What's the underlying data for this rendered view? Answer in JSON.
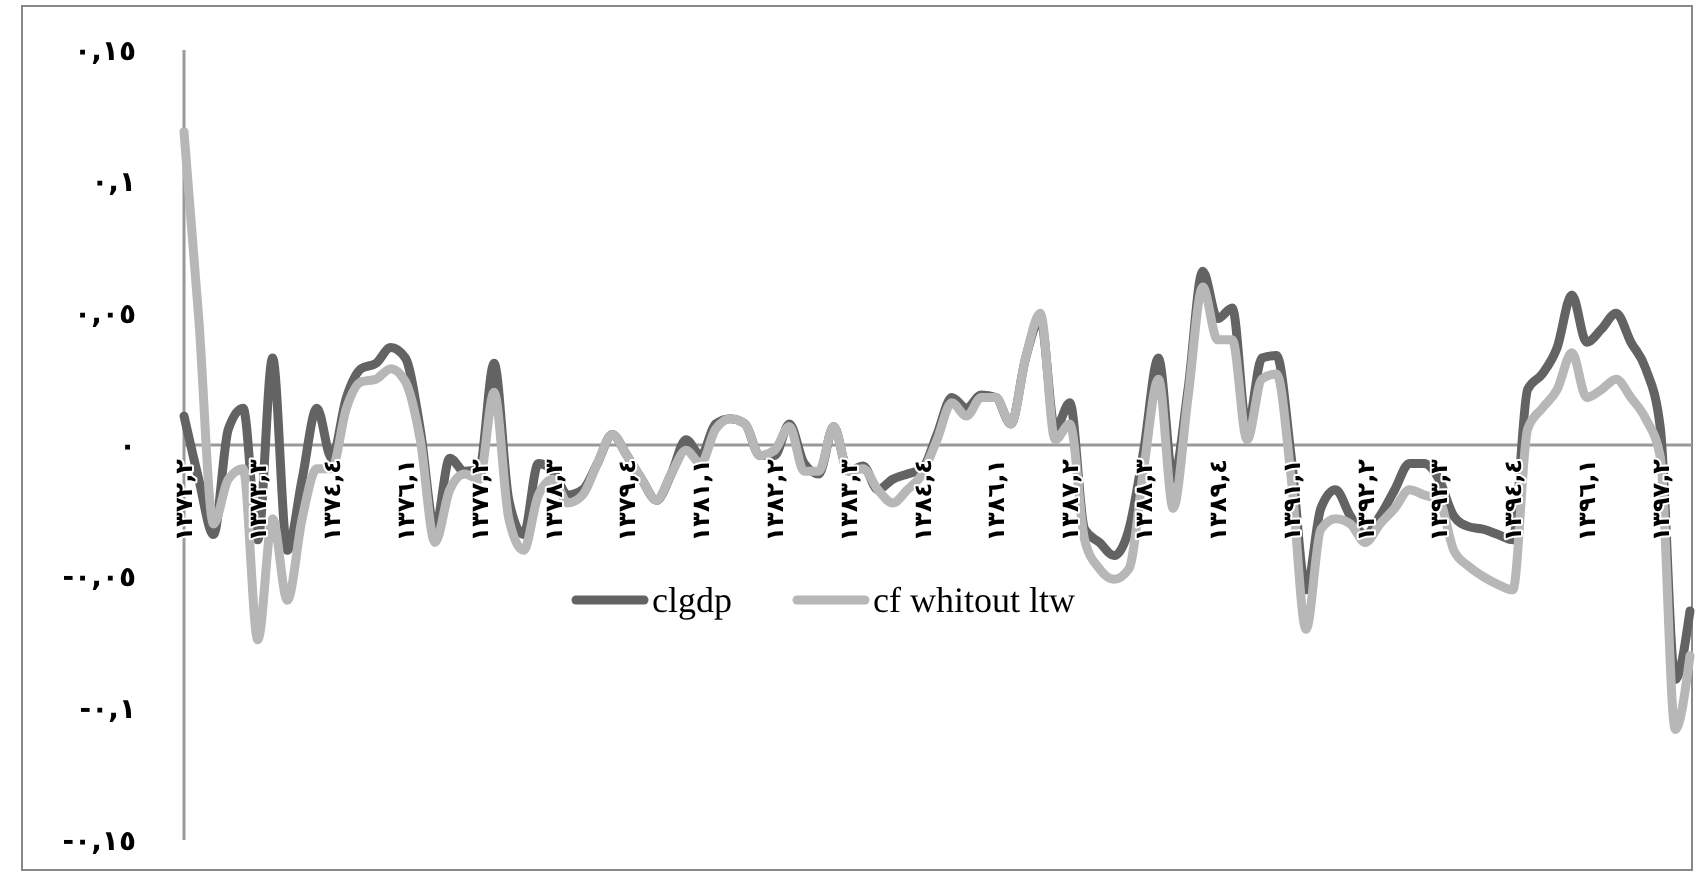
{
  "chart_data": {
    "type": "line",
    "categories": [
      "١٣٧٢,٢",
      null,
      null,
      null,
      null,
      "١٣٧٣,٣",
      null,
      null,
      null,
      null,
      "١٣٧٤,٤",
      null,
      null,
      null,
      null,
      "١٣٧٦,١",
      null,
      null,
      null,
      null,
      "١٣٧٧,٢",
      null,
      null,
      null,
      null,
      "١٣٧٨,٣",
      null,
      null,
      null,
      null,
      "١٣٧٩,٤",
      null,
      null,
      null,
      null,
      "١٣٨١,١",
      null,
      null,
      null,
      null,
      "١٣٨٢,٢",
      null,
      null,
      null,
      null,
      "١٣٨٣,٣",
      null,
      null,
      null,
      null,
      "١٣٨٤,٤",
      null,
      null,
      null,
      null,
      "١٣٨٦,١",
      null,
      null,
      null,
      null,
      "١٣٨٧,٢",
      null,
      null,
      null,
      null,
      "١٣٨٨,٣",
      null,
      null,
      null,
      null,
      "١٣٨٩,٤",
      null,
      null,
      null,
      null,
      "١٣٩١,١",
      null,
      null,
      null,
      null,
      "١٣٩٢,٢",
      null,
      null,
      null,
      null,
      "١٣٩٣,٣",
      null,
      null,
      null,
      null,
      "١٣٩٤,٤",
      null,
      null,
      null,
      null,
      "١٣٩٦,١",
      null,
      null,
      null,
      null,
      "١٣٩٧,٢",
      null,
      null
    ],
    "series": [
      {
        "name": "clgdp",
        "color": "#636363",
        "values": [
          0.011,
          -0.013,
          -0.034,
          0.006,
          0.014,
          -0.036,
          0.033,
          -0.04,
          -0.013,
          0.014,
          -0.005,
          0.018,
          0.029,
          0.031,
          0.037,
          0.033,
          0.006,
          -0.032,
          -0.005,
          -0.01,
          -0.009,
          0.031,
          -0.021,
          -0.034,
          -0.007,
          -0.01,
          -0.019,
          -0.017,
          -0.007,
          0.004,
          -0.004,
          -0.013,
          -0.021,
          -0.011,
          0.002,
          -0.004,
          0.008,
          0.01,
          0.008,
          -0.004,
          -0.004,
          0.008,
          -0.007,
          -0.011,
          0.007,
          -0.01,
          -0.008,
          -0.017,
          -0.013,
          -0.011,
          -0.009,
          0.004,
          0.018,
          0.014,
          0.019,
          0.018,
          0.008,
          0.033,
          0.048,
          0.006,
          0.016,
          -0.032,
          -0.037,
          -0.042,
          -0.032,
          -0.002,
          0.033,
          -0.013,
          0.021,
          0.066,
          0.048,
          0.052,
          0.006,
          0.033,
          0.034,
          -0.005,
          -0.055,
          -0.024,
          -0.017,
          -0.027,
          -0.034,
          -0.027,
          -0.017,
          -0.007,
          -0.007,
          -0.013,
          -0.027,
          -0.031,
          -0.032,
          -0.034,
          -0.036,
          0.021,
          0.027,
          0.037,
          0.057,
          0.039,
          0.044,
          0.05,
          0.039,
          0.029,
          0.006,
          -0.089,
          -0.063
        ]
      },
      {
        "name": "cf whitout ltw",
        "color": "#b7b7b7",
        "values": [
          0.119,
          0.048,
          -0.03,
          -0.013,
          -0.009,
          -0.074,
          -0.028,
          -0.059,
          -0.028,
          -0.009,
          -0.009,
          0.014,
          0.024,
          0.025,
          0.029,
          0.024,
          0.002,
          -0.037,
          -0.017,
          -0.011,
          -0.013,
          0.02,
          -0.028,
          -0.04,
          -0.019,
          -0.013,
          -0.022,
          -0.019,
          -0.007,
          0.004,
          -0.004,
          -0.013,
          -0.021,
          -0.011,
          -0.002,
          -0.007,
          0.006,
          0.01,
          0.008,
          -0.004,
          -0.002,
          0.007,
          -0.01,
          -0.01,
          0.007,
          -0.01,
          -0.009,
          -0.017,
          -0.022,
          -0.017,
          -0.011,
          0.002,
          0.016,
          0.011,
          0.018,
          0.018,
          0.008,
          0.033,
          0.05,
          0.002,
          0.008,
          -0.036,
          -0.047,
          -0.051,
          -0.047,
          -0.009,
          0.025,
          -0.024,
          0.018,
          0.06,
          0.04,
          0.04,
          0.002,
          0.025,
          0.027,
          -0.013,
          -0.07,
          -0.032,
          -0.028,
          -0.03,
          -0.037,
          -0.03,
          -0.024,
          -0.017,
          -0.019,
          -0.021,
          -0.04,
          -0.046,
          -0.05,
          -0.053,
          -0.055,
          0.006,
          0.014,
          0.021,
          0.035,
          0.018,
          0.021,
          0.025,
          0.018,
          0.01,
          -0.005,
          -0.108,
          -0.08
        ]
      }
    ],
    "ylim": [
      -0.15,
      0.15
    ],
    "yticks": [
      {
        "value": 0.15,
        "label": "٠,١٥"
      },
      {
        "value": 0.1,
        "label": "٠,١"
      },
      {
        "value": 0.05,
        "label": "٠,٠٥"
      },
      {
        "value": 0,
        "label": "٠"
      },
      {
        "value": -0.05,
        "label": "-٠,٠٥"
      },
      {
        "value": -0.1,
        "label": "-٠,١"
      },
      {
        "value": -0.15,
        "label": "-٠,١٥"
      }
    ],
    "grid": false,
    "legend": "bottom",
    "marker": "none",
    "line_style": "solid"
  }
}
